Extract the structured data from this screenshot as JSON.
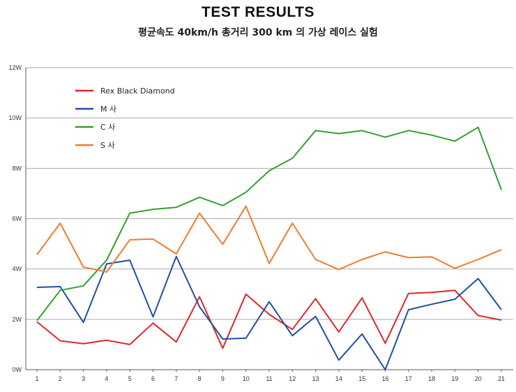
{
  "title": "TEST RESULTS",
  "subtitle": "평균속도 40km/h 총거리 300 km 의 가상 레이스 실험",
  "chart_data": {
    "type": "line",
    "title": "TEST RESULTS",
    "subtitle": "평균속도 40km/h 총거리 300 km 의 가상 레이스 실험",
    "xlabel": "",
    "ylabel": "",
    "x": [
      1,
      2,
      3,
      4,
      5,
      6,
      7,
      8,
      9,
      10,
      11,
      12,
      13,
      14,
      15,
      16,
      17,
      18,
      19,
      20,
      21
    ],
    "ylim": [
      0,
      12
    ],
    "yticks": [
      0,
      2,
      4,
      6,
      8,
      10,
      12
    ],
    "ytick_labels": [
      "0W",
      "2W",
      "4W",
      "6W",
      "8W",
      "10W",
      "12W"
    ],
    "grid": "horizontal",
    "legend_position": "top-left",
    "series": [
      {
        "name": "Rex Black Diamond",
        "color": "#e0262b",
        "values": [
          1.9,
          1.15,
          1.03,
          1.17,
          1.0,
          1.85,
          1.1,
          2.9,
          0.85,
          3.0,
          2.2,
          1.6,
          2.82,
          1.5,
          2.85,
          1.05,
          3.03,
          3.07,
          3.15,
          2.15,
          1.97
        ]
      },
      {
        "name": "M 사",
        "color": "#1f4fa0",
        "values": [
          3.27,
          3.3,
          1.88,
          4.2,
          4.35,
          2.1,
          4.5,
          2.5,
          1.22,
          1.25,
          2.7,
          1.35,
          2.12,
          0.38,
          1.42,
          0.0,
          2.38,
          2.6,
          2.8,
          3.62,
          2.38
        ]
      },
      {
        "name": "C 사",
        "color": "#33a02c",
        "values": [
          1.95,
          3.15,
          3.33,
          4.35,
          6.22,
          6.37,
          6.45,
          6.85,
          6.52,
          7.05,
          7.9,
          8.4,
          9.5,
          9.38,
          9.5,
          9.24,
          9.5,
          9.32,
          9.08,
          9.63,
          7.15
        ]
      },
      {
        "name": "S 사",
        "color": "#f07c2a",
        "values": [
          4.57,
          5.82,
          4.08,
          3.88,
          5.16,
          5.19,
          4.6,
          6.22,
          4.98,
          6.5,
          4.22,
          5.82,
          4.38,
          3.98,
          4.38,
          4.68,
          4.45,
          4.48,
          4.03,
          4.38,
          4.77
        ]
      }
    ]
  }
}
